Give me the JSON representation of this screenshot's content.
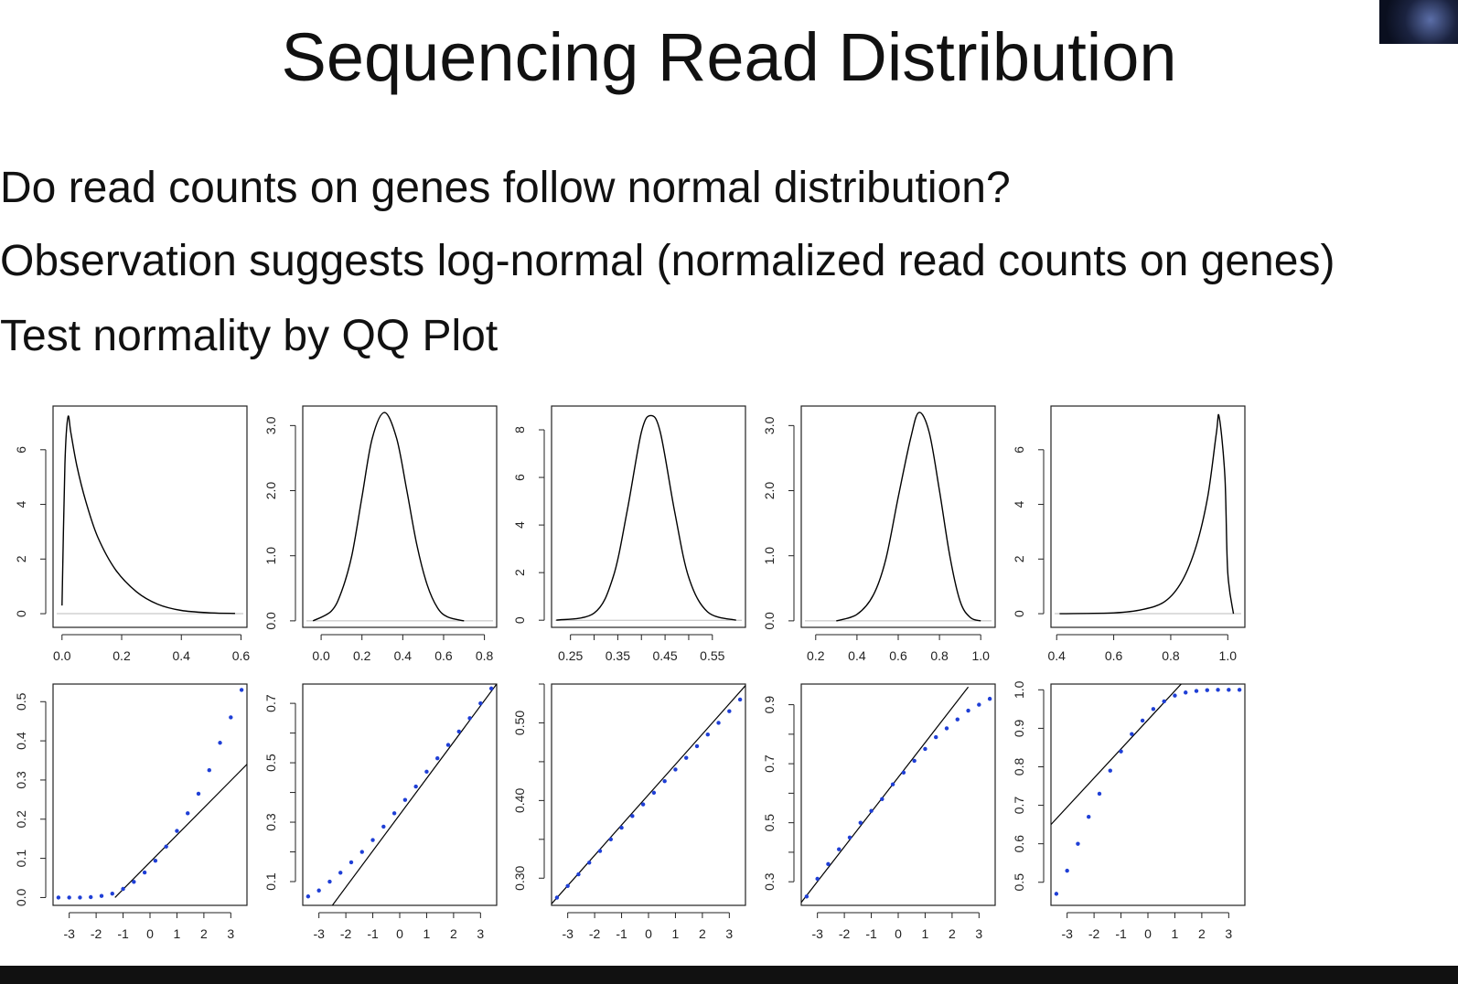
{
  "slide": {
    "title": "Sequencing Read Distribution",
    "bullets": [
      "Do read counts on genes follow normal distribution?",
      "Observation suggests log-normal (normalized read counts on genes)",
      "Test normality by QQ Plot"
    ]
  },
  "colors": {
    "qq_points": "#1f3fd6",
    "lines": "#000000",
    "baseline": "#bbbbbb"
  },
  "chart_data": [
    {
      "type": "line",
      "panel": "density",
      "description_shape": "right-skewed",
      "x": [
        0.0,
        0.01,
        0.02,
        0.03,
        0.05,
        0.08,
        0.12,
        0.18,
        0.25,
        0.32,
        0.4,
        0.5,
        0.58
      ],
      "y": [
        0.3,
        5.5,
        7.2,
        6.6,
        5.4,
        4.1,
        2.8,
        1.6,
        0.8,
        0.35,
        0.12,
        0.03,
        0.01
      ],
      "xlim": [
        -0.03,
        0.62
      ],
      "ylim": [
        -0.5,
        7.6
      ],
      "xticks": [
        0.0,
        0.2,
        0.4,
        0.6
      ],
      "xtick_labels": [
        "0.0",
        "0.2",
        "0.4",
        "0.6"
      ],
      "yticks": [
        0,
        2,
        4,
        6
      ],
      "ytick_labels": [
        "0",
        "2",
        "4",
        "6"
      ]
    },
    {
      "type": "line",
      "panel": "density",
      "x": [
        -0.04,
        0.05,
        0.1,
        0.15,
        0.2,
        0.25,
        0.31,
        0.37,
        0.42,
        0.47,
        0.52,
        0.57,
        0.62,
        0.7
      ],
      "y": [
        0.0,
        0.15,
        0.45,
        1.0,
        1.9,
        2.8,
        3.2,
        2.8,
        2.0,
        1.15,
        0.55,
        0.2,
        0.06,
        0.0
      ],
      "xlim": [
        -0.09,
        0.86
      ],
      "ylim": [
        -0.1,
        3.3
      ],
      "xticks": [
        0.0,
        0.2,
        0.4,
        0.6,
        0.8
      ],
      "xtick_labels": [
        "0.0",
        "0.2",
        "0.4",
        "0.6",
        "0.8"
      ],
      "yticks": [
        0.0,
        1.0,
        2.0,
        3.0
      ],
      "ytick_labels": [
        "0.0",
        "1.0",
        "2.0",
        "3.0"
      ]
    },
    {
      "type": "line",
      "panel": "density",
      "x": [
        0.22,
        0.3,
        0.34,
        0.37,
        0.4,
        0.42,
        0.44,
        0.47,
        0.5,
        0.54,
        0.6
      ],
      "y": [
        0.0,
        0.3,
        1.8,
        4.6,
        7.9,
        8.6,
        7.9,
        4.6,
        1.8,
        0.35,
        0.0
      ],
      "xlim": [
        0.21,
        0.62
      ],
      "ylim": [
        -0.3,
        9.0
      ],
      "xticks": [
        0.25,
        0.3,
        0.35,
        0.4,
        0.45,
        0.5,
        0.55
      ],
      "xtick_labels": [
        "0.25",
        "",
        "0.35",
        "",
        "0.45",
        "",
        "0.55"
      ],
      "yticks": [
        0,
        2,
        4,
        6,
        8
      ],
      "ytick_labels": [
        "0",
        "2",
        "4",
        "6",
        "8"
      ]
    },
    {
      "type": "line",
      "panel": "density",
      "x": [
        0.3,
        0.4,
        0.48,
        0.54,
        0.6,
        0.66,
        0.7,
        0.75,
        0.8,
        0.85,
        0.9,
        0.95,
        1.0
      ],
      "y": [
        0.0,
        0.1,
        0.4,
        0.95,
        1.9,
        2.8,
        3.2,
        2.9,
        2.0,
        1.0,
        0.3,
        0.05,
        0.0
      ],
      "xlim": [
        0.13,
        1.07
      ],
      "ylim": [
        -0.1,
        3.3
      ],
      "xticks": [
        0.2,
        0.4,
        0.6,
        0.8,
        1.0
      ],
      "xtick_labels": [
        "0.2",
        "0.4",
        "0.6",
        "0.8",
        "1.0"
      ],
      "yticks": [
        0.0,
        1.0,
        2.0,
        3.0
      ],
      "ytick_labels": [
        "0.0",
        "1.0",
        "2.0",
        "3.0"
      ]
    },
    {
      "type": "line",
      "panel": "density",
      "x": [
        0.41,
        0.6,
        0.7,
        0.78,
        0.84,
        0.89,
        0.93,
        0.96,
        0.97,
        0.99,
        1.0,
        1.02
      ],
      "y": [
        0.0,
        0.03,
        0.15,
        0.45,
        1.2,
        2.5,
        4.3,
        6.6,
        7.2,
        5.0,
        1.5,
        0.0
      ],
      "xlim": [
        0.38,
        1.06
      ],
      "ylim": [
        -0.5,
        7.6
      ],
      "xticks": [
        0.4,
        0.6,
        0.8,
        1.0
      ],
      "xtick_labels": [
        "0.4",
        "0.6",
        "0.8",
        "1.0"
      ],
      "yticks": [
        0,
        2,
        4,
        6
      ],
      "ytick_labels": [
        "0",
        "2",
        "4",
        "6"
      ]
    },
    {
      "type": "scatter",
      "panel": "qq",
      "x": [
        -3.4,
        -3.0,
        -2.6,
        -2.2,
        -1.8,
        -1.4,
        -1.0,
        -0.6,
        -0.2,
        0.2,
        0.6,
        1.0,
        1.4,
        1.8,
        2.2,
        2.6,
        3.0,
        3.4
      ],
      "y": [
        0.0,
        0.0,
        0.0,
        0.001,
        0.004,
        0.01,
        0.022,
        0.04,
        0.064,
        0.094,
        0.13,
        0.17,
        0.215,
        0.265,
        0.325,
        0.395,
        0.46,
        0.53
      ],
      "ref_line": [
        [
          -1.3,
          0.0
        ],
        [
          3.6,
          0.34
        ]
      ],
      "xlim": [
        -3.6,
        3.6
      ],
      "ylim": [
        -0.02,
        0.545
      ],
      "xticks": [
        -3,
        -2,
        -1,
        0,
        1,
        2,
        3
      ],
      "xtick_labels": [
        "-3",
        "-2",
        "-1",
        "0",
        "1",
        "2",
        "3"
      ],
      "yticks": [
        0.0,
        0.1,
        0.2,
        0.3,
        0.4,
        0.5
      ],
      "ytick_labels": [
        "0.0",
        "0.1",
        "0.2",
        "0.3",
        "0.4",
        "0.5"
      ]
    },
    {
      "type": "scatter",
      "panel": "qq",
      "x": [
        -3.4,
        -3.0,
        -2.6,
        -2.2,
        -1.8,
        -1.4,
        -1.0,
        -0.6,
        -0.2,
        0.2,
        0.6,
        1.0,
        1.4,
        1.8,
        2.2,
        2.6,
        3.0,
        3.4
      ],
      "y": [
        0.05,
        0.07,
        0.1,
        0.13,
        0.165,
        0.2,
        0.24,
        0.285,
        0.33,
        0.375,
        0.42,
        0.47,
        0.515,
        0.56,
        0.605,
        0.65,
        0.7,
        0.75
      ],
      "ref_line": [
        [
          -2.5,
          0.02
        ],
        [
          3.6,
          0.765
        ]
      ],
      "xlim": [
        -3.6,
        3.6
      ],
      "ylim": [
        0.02,
        0.765
      ],
      "xticks": [
        -3,
        -2,
        -1,
        0,
        1,
        2,
        3
      ],
      "xtick_labels": [
        "-3",
        "-2",
        "-1",
        "0",
        "1",
        "2",
        "3"
      ],
      "yticks": [
        0.1,
        0.2,
        0.3,
        0.4,
        0.5,
        0.6,
        0.7
      ],
      "ytick_labels": [
        "0.1",
        "",
        "0.3",
        "",
        "0.5",
        "",
        "0.7"
      ]
    },
    {
      "type": "scatter",
      "panel": "qq",
      "x": [
        -3.4,
        -3.0,
        -2.6,
        -2.2,
        -1.8,
        -1.4,
        -1.0,
        -0.6,
        -0.2,
        0.2,
        0.6,
        1.0,
        1.4,
        1.8,
        2.2,
        2.6,
        3.0,
        3.4
      ],
      "y": [
        0.275,
        0.29,
        0.305,
        0.32,
        0.335,
        0.35,
        0.365,
        0.38,
        0.395,
        0.41,
        0.425,
        0.44,
        0.455,
        0.47,
        0.485,
        0.5,
        0.515,
        0.53
      ],
      "ref_line": [
        [
          -3.6,
          0.267
        ],
        [
          3.6,
          0.548
        ]
      ],
      "xlim": [
        -3.6,
        3.6
      ],
      "ylim": [
        0.265,
        0.55
      ],
      "xticks": [
        -3,
        -2,
        -1,
        0,
        1,
        2,
        3
      ],
      "xtick_labels": [
        "-3",
        "-2",
        "-1",
        "0",
        "1",
        "2",
        "3"
      ],
      "yticks": [
        0.3,
        0.35,
        0.4,
        0.45,
        0.5,
        0.55
      ],
      "ytick_labels": [
        "0.30",
        "",
        "0.40",
        "",
        "0.50",
        ""
      ]
    },
    {
      "type": "scatter",
      "panel": "qq",
      "x": [
        -3.4,
        -3.0,
        -2.6,
        -2.2,
        -1.8,
        -1.4,
        -1.0,
        -0.6,
        -0.2,
        0.2,
        0.6,
        1.0,
        1.4,
        1.8,
        2.2,
        2.6,
        3.0,
        3.4
      ],
      "y": [
        0.25,
        0.31,
        0.36,
        0.41,
        0.45,
        0.5,
        0.54,
        0.58,
        0.63,
        0.67,
        0.71,
        0.75,
        0.79,
        0.82,
        0.85,
        0.88,
        0.9,
        0.92
      ],
      "ref_line": [
        [
          -3.6,
          0.23
        ],
        [
          2.6,
          0.96
        ]
      ],
      "xlim": [
        -3.6,
        3.6
      ],
      "ylim": [
        0.22,
        0.97
      ],
      "xticks": [
        -3,
        -2,
        -1,
        0,
        1,
        2,
        3
      ],
      "xtick_labels": [
        "-3",
        "-2",
        "-1",
        "0",
        "1",
        "2",
        "3"
      ],
      "yticks": [
        0.3,
        0.4,
        0.5,
        0.6,
        0.7,
        0.8,
        0.9
      ],
      "ytick_labels": [
        "0.3",
        "",
        "0.5",
        "",
        "0.7",
        "",
        "0.9"
      ]
    },
    {
      "type": "scatter",
      "panel": "qq",
      "x": [
        -3.4,
        -3.0,
        -2.6,
        -2.2,
        -1.8,
        -1.4,
        -1.0,
        -0.6,
        -0.2,
        0.2,
        0.6,
        1.0,
        1.4,
        1.8,
        2.2,
        2.6,
        3.0,
        3.4
      ],
      "y": [
        0.47,
        0.53,
        0.6,
        0.67,
        0.73,
        0.79,
        0.84,
        0.885,
        0.92,
        0.95,
        0.97,
        0.985,
        0.993,
        0.997,
        0.999,
        1.0,
        1.0,
        1.0
      ],
      "ref_line": [
        [
          -3.6,
          0.65
        ],
        [
          1.3,
          1.02
        ]
      ],
      "xlim": [
        -3.6,
        3.6
      ],
      "ylim": [
        0.44,
        1.015
      ],
      "xticks": [
        -3,
        -2,
        -1,
        0,
        1,
        2,
        3
      ],
      "xtick_labels": [
        "-3",
        "-2",
        "-1",
        "0",
        "1",
        "2",
        "3"
      ],
      "yticks": [
        0.5,
        0.6,
        0.7,
        0.8,
        0.9,
        1.0
      ],
      "ytick_labels": [
        "0.5",
        "0.6",
        "0.7",
        "0.8",
        "0.9",
        "1.0"
      ]
    }
  ]
}
